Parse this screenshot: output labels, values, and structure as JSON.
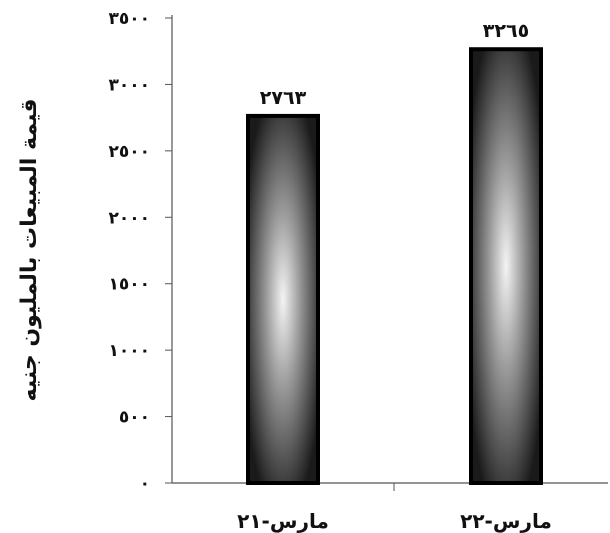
{
  "chart_data": {
    "type": "bar",
    "title": "",
    "xlabel": "",
    "ylabel": "قيمة المبيعات بالمليون جنيه",
    "categories": [
      "مارس-٢١",
      "مارس-٢٢"
    ],
    "series": [
      {
        "values": [
          2763,
          3265
        ],
        "value_labels": [
          "٢٧٦٣",
          "٣٢٦٥"
        ]
      }
    ],
    "ylim": [
      0,
      3500
    ],
    "y_ticks": [
      {
        "value": 0,
        "label": "٠"
      },
      {
        "value": 500,
        "label": "٥٠٠"
      },
      {
        "value": 1000,
        "label": "١٠٠٠"
      },
      {
        "value": 1500,
        "label": "١٥٠٠"
      },
      {
        "value": 2000,
        "label": "٢٠٠٠"
      },
      {
        "value": 2500,
        "label": "٢٥٠٠"
      },
      {
        "value": 3000,
        "label": "٣٠٠٠"
      },
      {
        "value": 3500,
        "label": "٣٥٠٠"
      }
    ],
    "grid": false,
    "legend": "none",
    "colors": {
      "bar_fill_center": "#f4f4f4",
      "bar_fill_edge": "#1a1a1a",
      "bar_border": "#000000",
      "axis": "#555555"
    }
  }
}
